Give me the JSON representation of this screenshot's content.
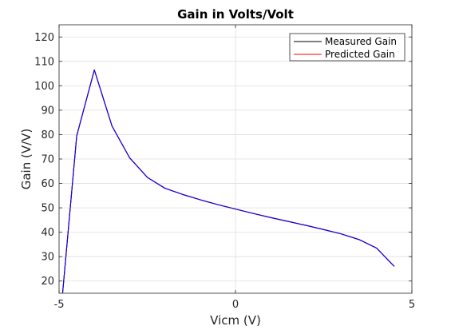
{
  "chart_data": {
    "type": "line",
    "title": "Gain in Volts/Volt",
    "xlabel": "Vicm (V)",
    "ylabel": "Gain (V/V)",
    "xlim": [
      -5,
      5
    ],
    "ylim": [
      15,
      125
    ],
    "xticks": [
      -5,
      0,
      5
    ],
    "yticks": [
      20,
      30,
      40,
      50,
      60,
      70,
      80,
      90,
      100,
      110,
      120
    ],
    "grid": true,
    "legend_position": "top-right",
    "series": [
      {
        "name": "Measured Gain",
        "color": "#000000",
        "x": [
          -4.9,
          -4.5,
          -4.0,
          -3.5,
          -3.0,
          -2.5,
          -2.0,
          -1.5,
          -1.0,
          -0.5,
          0.0,
          0.5,
          1.0,
          1.5,
          2.0,
          2.5,
          3.0,
          3.5,
          4.0,
          4.5
        ],
        "y": [
          15,
          79.5,
          106.5,
          83.5,
          70.5,
          62.5,
          58.0,
          55.5,
          53.3,
          51.3,
          49.5,
          47.7,
          46.0,
          44.4,
          42.8,
          41.1,
          39.3,
          37.0,
          33.5,
          26.0
        ]
      },
      {
        "name": "Predicted Gain",
        "color": "#ff0000",
        "x": [
          -4.9,
          -4.5,
          -4.0,
          -3.5,
          -3.0,
          -2.5,
          -2.0,
          -1.5,
          -1.0,
          -0.5,
          0.0,
          0.5,
          1.0,
          1.5,
          2.0,
          2.5,
          3.0,
          3.5,
          4.0,
          4.5
        ],
        "y": [
          15,
          79.5,
          106.5,
          83.5,
          70.5,
          62.5,
          58.0,
          55.5,
          53.3,
          51.3,
          49.5,
          47.7,
          46.0,
          44.4,
          42.8,
          41.1,
          39.3,
          37.0,
          33.5,
          26.0
        ]
      }
    ],
    "overlay_line_color": "#0000ff"
  }
}
